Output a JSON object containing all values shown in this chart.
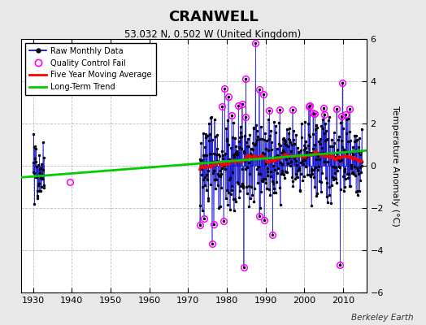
{
  "title": "CRANWELL",
  "subtitle": "53.032 N, 0.502 W (United Kingdom)",
  "ylabel": "Temperature Anomaly (°C)",
  "credit": "Berkeley Earth",
  "ylim": [
    -6,
    6
  ],
  "xlim": [
    1927,
    2016
  ],
  "xticks": [
    1930,
    1940,
    1950,
    1960,
    1970,
    1980,
    1990,
    2000,
    2010
  ],
  "yticks": [
    -6,
    -4,
    -2,
    0,
    2,
    4,
    6
  ],
  "fig_bg": "#e8e8e8",
  "plot_bg": "#ffffff",
  "raw_color": "#0000cc",
  "ma_color": "#ff0000",
  "trend_color": "#00cc00",
  "qc_color": "#ff00ff",
  "dot_color": "#000000",
  "grid_color": "#bbbbbb",
  "seed": 42,
  "segment1_start": 1929.5,
  "segment1_end": 1933.0,
  "segment2_start": 1973.0,
  "segment2_end": 2015.0,
  "qc_single_x": 1939.5,
  "qc_single_y": -0.75,
  "trend_x": [
    1927,
    2016
  ],
  "trend_y": [
    -0.55,
    0.72
  ]
}
